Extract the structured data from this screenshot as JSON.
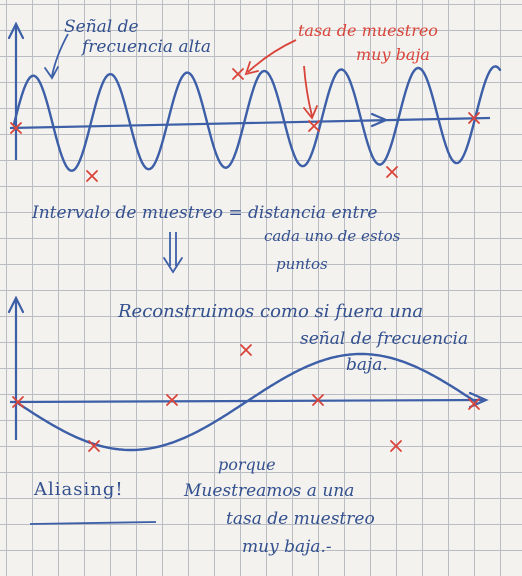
{
  "notes": {
    "senal_line1": "Señal de",
    "senal_line2": "frecuencia alta",
    "tasa_line1": "tasa de muestreo",
    "tasa_line2": "muy baja",
    "intervalo_line1": "Intervalo de muestreo = distancia entre",
    "intervalo_line2": "cada uno de estos",
    "intervalo_line3": "puntos",
    "recon_line1": "Reconstruimos como si fuera una",
    "recon_line2": "señal de frecuencia",
    "recon_line3": "baja.",
    "aliasing": "Aliasing!",
    "porque_line1": "porque",
    "porque_line2": "Muestreamos a una",
    "porque_line3": "tasa de muestreo",
    "porque_line4": "muy baja.-"
  },
  "colors": {
    "paper": "#f4f2ee",
    "grid": "#b9bcc3",
    "ink_blue": "#3c5fa8",
    "ink_red": "#d9443a"
  },
  "top_signal": {
    "description": "high-frequency sine",
    "cycles": 6.2
  },
  "bottom_signal": {
    "description": "reconstructed low-frequency sine",
    "cycles": 1
  }
}
